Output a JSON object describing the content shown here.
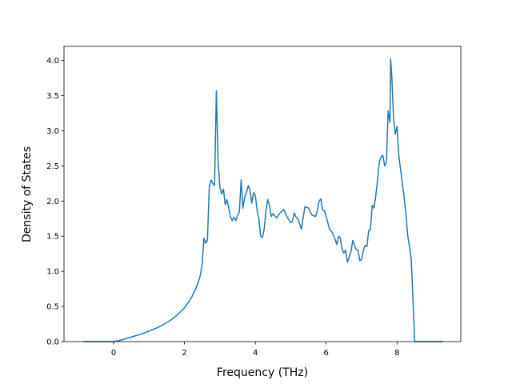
{
  "chart_data": {
    "type": "line",
    "title": "",
    "xlabel": "Frequency (THz)",
    "ylabel": "Density of States",
    "xlim": [
      -1.4,
      9.8
    ],
    "ylim": [
      0.0,
      4.2
    ],
    "xticks": [
      0,
      2,
      4,
      6,
      8
    ],
    "xtick_labels": [
      "0",
      "2",
      "4",
      "6",
      "8"
    ],
    "yticks": [
      0.0,
      0.5,
      1.0,
      1.5,
      2.0,
      2.5,
      3.0,
      3.5,
      4.0
    ],
    "ytick_labels": [
      "0.0",
      "0.5",
      "1.0",
      "1.5",
      "2.0",
      "2.5",
      "3.0",
      "3.5",
      "4.0"
    ],
    "grid": false,
    "series": [
      {
        "color": "#1f77b4",
        "x": [
          -0.85,
          0.0,
          0.2,
          0.4,
          0.6,
          0.8,
          1.0,
          1.2,
          1.4,
          1.6,
          1.8,
          2.0,
          2.1,
          2.2,
          2.3,
          2.4,
          2.45,
          2.5,
          2.55,
          2.6,
          2.65,
          2.7,
          2.75,
          2.8,
          2.85,
          2.9,
          2.95,
          3.0,
          3.05,
          3.1,
          3.15,
          3.2,
          3.25,
          3.3,
          3.35,
          3.4,
          3.45,
          3.5,
          3.55,
          3.6,
          3.65,
          3.7,
          3.75,
          3.8,
          3.85,
          3.9,
          3.95,
          4.0,
          4.05,
          4.1,
          4.15,
          4.2,
          4.25,
          4.3,
          4.35,
          4.4,
          4.45,
          4.5,
          4.6,
          4.7,
          4.8,
          4.9,
          5.0,
          5.05,
          5.1,
          5.15,
          5.2,
          5.3,
          5.4,
          5.5,
          5.6,
          5.7,
          5.75,
          5.8,
          5.85,
          5.9,
          5.95,
          6.0,
          6.1,
          6.15,
          6.2,
          6.25,
          6.3,
          6.35,
          6.4,
          6.45,
          6.5,
          6.55,
          6.6,
          6.7,
          6.75,
          6.8,
          6.85,
          6.9,
          6.95,
          7.0,
          7.05,
          7.1,
          7.15,
          7.2,
          7.25,
          7.3,
          7.35,
          7.4,
          7.45,
          7.5,
          7.55,
          7.6,
          7.65,
          7.7,
          7.75,
          7.8,
          7.82,
          7.85,
          7.9,
          7.95,
          8.0,
          8.05,
          8.1,
          8.15,
          8.2,
          8.25,
          8.3,
          8.4,
          8.45,
          8.5,
          8.6,
          9.3
        ],
        "y": [
          0.0,
          0.0,
          0.02,
          0.05,
          0.08,
          0.11,
          0.15,
          0.19,
          0.24,
          0.3,
          0.38,
          0.48,
          0.55,
          0.63,
          0.73,
          0.86,
          0.95,
          1.1,
          1.47,
          1.4,
          1.45,
          2.2,
          2.3,
          2.25,
          2.22,
          3.57,
          2.55,
          2.2,
          2.1,
          2.17,
          1.95,
          2.02,
          1.9,
          1.77,
          1.72,
          1.77,
          1.72,
          1.8,
          1.85,
          2.3,
          1.9,
          2.05,
          2.12,
          2.22,
          2.15,
          1.97,
          2.12,
          2.08,
          1.87,
          1.75,
          1.5,
          1.48,
          1.6,
          1.86,
          2.02,
          1.94,
          1.78,
          1.82,
          1.76,
          1.83,
          1.88,
          1.77,
          1.69,
          1.72,
          1.83,
          1.77,
          1.75,
          1.6,
          1.92,
          1.9,
          1.8,
          1.78,
          1.86,
          2.0,
          2.03,
          1.87,
          1.86,
          1.78,
          1.59,
          1.57,
          1.52,
          1.46,
          1.38,
          1.5,
          1.47,
          1.32,
          1.26,
          1.3,
          1.13,
          1.28,
          1.44,
          1.37,
          1.31,
          1.3,
          1.15,
          1.17,
          1.3,
          1.37,
          1.35,
          1.58,
          1.6,
          1.94,
          1.9,
          2.07,
          2.3,
          2.55,
          2.63,
          2.65,
          2.5,
          2.55,
          3.28,
          3.12,
          4.02,
          3.8,
          3.2,
          2.95,
          3.06,
          2.65,
          2.45,
          2.25,
          2.05,
          1.83,
          1.52,
          1.18,
          0.6,
          0.0,
          0.0,
          0.0
        ]
      }
    ]
  }
}
